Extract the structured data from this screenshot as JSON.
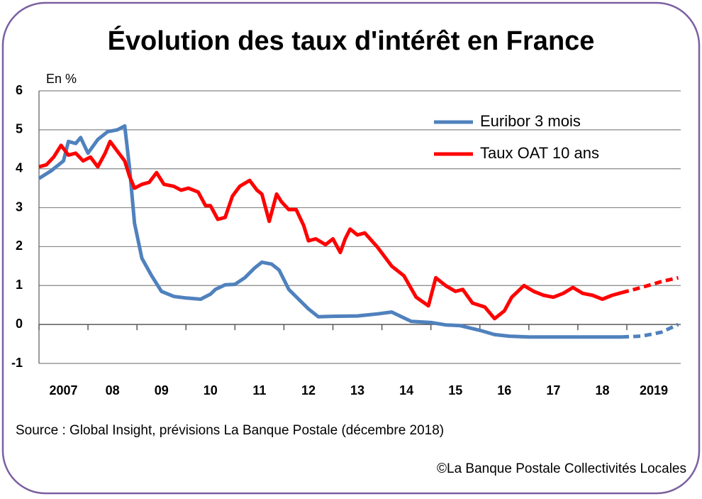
{
  "chart_data": {
    "type": "line",
    "title": "Évolution des taux d'intérêt en France",
    "y_unit": "En %",
    "source": "Source : Global Insight, prévisions La Banque Postale (décembre 2018)",
    "copyright": "©La Banque Postale Collectivités Locales",
    "xlim": [
      2007,
      2020.1
    ],
    "xticks": [
      {
        "value": 2007,
        "label": "2007"
      },
      {
        "value": 2008,
        "label": "08"
      },
      {
        "value": 2009,
        "label": "09"
      },
      {
        "value": 2010,
        "label": "10"
      },
      {
        "value": 2011,
        "label": "11"
      },
      {
        "value": 2012,
        "label": "12"
      },
      {
        "value": 2013,
        "label": "13"
      },
      {
        "value": 2014,
        "label": "14"
      },
      {
        "value": 2015,
        "label": "15"
      },
      {
        "value": 2016,
        "label": "16"
      },
      {
        "value": 2017,
        "label": "17"
      },
      {
        "value": 2018,
        "label": "18"
      },
      {
        "value": 2019,
        "label": "2019"
      }
    ],
    "ylim": [
      -1,
      6
    ],
    "yticks": [
      -1,
      0,
      1,
      2,
      3,
      4,
      5,
      6
    ],
    "grid": true,
    "legend": "top-right",
    "series": [
      {
        "name": "Euribor 3 mois",
        "color": "#4f81bd",
        "dash_from": 46,
        "x": [
          2007.0,
          2007.25,
          2007.5,
          2007.6,
          2007.75,
          2007.85,
          2008.0,
          2008.2,
          2008.4,
          2008.6,
          2008.75,
          2008.85,
          2008.95,
          2009.1,
          2009.3,
          2009.5,
          2009.75,
          2010.0,
          2010.3,
          2010.5,
          2010.6,
          2010.8,
          2011.0,
          2011.2,
          2011.4,
          2011.55,
          2011.75,
          2011.9,
          2012.1,
          2012.3,
          2012.5,
          2012.7,
          2013.0,
          2013.5,
          2013.9,
          2014.2,
          2014.4,
          2014.6,
          2015.0,
          2015.3,
          2015.6,
          2016.0,
          2016.3,
          2016.6,
          2017.0,
          2018.0,
          2018.9,
          2019.3,
          2019.7,
          2020.05
        ],
        "values": [
          3.75,
          3.95,
          4.2,
          4.7,
          4.65,
          4.8,
          4.4,
          4.75,
          4.95,
          5.0,
          5.1,
          4.0,
          2.6,
          1.7,
          1.25,
          0.85,
          0.72,
          0.68,
          0.65,
          0.78,
          0.9,
          1.02,
          1.03,
          1.2,
          1.45,
          1.6,
          1.55,
          1.4,
          0.9,
          0.65,
          0.4,
          0.2,
          0.21,
          0.22,
          0.27,
          0.32,
          0.2,
          0.08,
          0.05,
          -0.01,
          -0.03,
          -0.15,
          -0.26,
          -0.3,
          -0.32,
          -0.32,
          -0.32,
          -0.3,
          -0.2,
          0.0
        ]
      },
      {
        "name": "Taux OAT 10 ans",
        "color": "#ff0000",
        "dash_from": 71,
        "x": [
          2007.0,
          2007.15,
          2007.3,
          2007.45,
          2007.6,
          2007.75,
          2007.9,
          2008.05,
          2008.2,
          2008.35,
          2008.45,
          2008.6,
          2008.75,
          2008.85,
          2008.95,
          2009.1,
          2009.25,
          2009.4,
          2009.55,
          2009.75,
          2009.9,
          2010.05,
          2010.25,
          2010.4,
          2010.5,
          2010.65,
          2010.8,
          2010.95,
          2011.1,
          2011.3,
          2011.45,
          2011.55,
          2011.7,
          2011.85,
          2011.95,
          2012.1,
          2012.25,
          2012.4,
          2012.5,
          2012.65,
          2012.85,
          2013.0,
          2013.15,
          2013.25,
          2013.35,
          2013.5,
          2013.65,
          2013.9,
          2014.2,
          2014.45,
          2014.7,
          2014.95,
          2015.1,
          2015.3,
          2015.5,
          2015.65,
          2015.85,
          2016.1,
          2016.3,
          2016.5,
          2016.65,
          2016.9,
          2017.1,
          2017.3,
          2017.5,
          2017.7,
          2017.9,
          2018.1,
          2018.3,
          2018.5,
          2018.7,
          2018.9,
          2019.3,
          2019.7,
          2020.05
        ],
        "values": [
          4.05,
          4.1,
          4.3,
          4.6,
          4.35,
          4.4,
          4.2,
          4.3,
          4.05,
          4.4,
          4.7,
          4.45,
          4.2,
          3.8,
          3.5,
          3.6,
          3.65,
          3.9,
          3.6,
          3.55,
          3.45,
          3.5,
          3.4,
          3.05,
          3.05,
          2.7,
          2.75,
          3.3,
          3.55,
          3.7,
          3.45,
          3.35,
          2.65,
          3.35,
          3.15,
          2.95,
          2.95,
          2.55,
          2.15,
          2.2,
          2.05,
          2.2,
          1.85,
          2.2,
          2.45,
          2.3,
          2.35,
          2.0,
          1.5,
          1.25,
          0.7,
          0.48,
          1.2,
          1.0,
          0.85,
          0.9,
          0.55,
          0.45,
          0.15,
          0.35,
          0.7,
          1.0,
          0.85,
          0.75,
          0.7,
          0.8,
          0.95,
          0.8,
          0.75,
          0.65,
          0.75,
          0.82,
          0.95,
          1.1,
          1.2
        ]
      }
    ]
  }
}
